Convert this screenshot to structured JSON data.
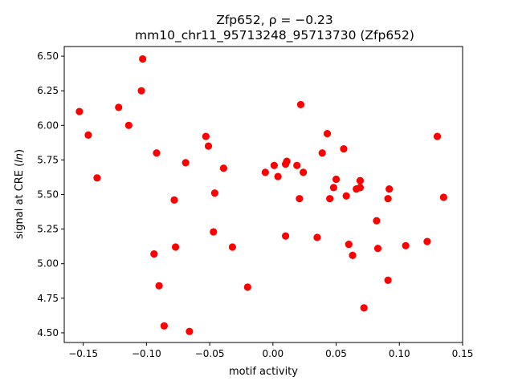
{
  "chart_data": {
    "type": "scatter",
    "title": "Zfp652, ρ = −0.23",
    "subtitle": "mm10_chr11_95713248_95713730 (Zfp652)",
    "xlabel": "motif activity",
    "ylabel": "signal at CRE (ln)",
    "xlim": [
      -0.165,
      0.15
    ],
    "ylim": [
      4.43,
      6.57
    ],
    "xticks": [
      "−0.15",
      "−0.10",
      "−0.05",
      "0.00",
      "0.05",
      "0.10",
      "0.15"
    ],
    "yticks": [
      "4.50",
      "4.75",
      "5.00",
      "5.25",
      "5.50",
      "5.75",
      "6.00",
      "6.25",
      "6.50"
    ],
    "grid": false,
    "marker_color": "#ff0000",
    "points": [
      {
        "x": -0.153,
        "y": 6.1
      },
      {
        "x": -0.146,
        "y": 5.93
      },
      {
        "x": -0.139,
        "y": 5.62
      },
      {
        "x": -0.122,
        "y": 6.13
      },
      {
        "x": -0.114,
        "y": 6.0
      },
      {
        "x": -0.103,
        "y": 6.48
      },
      {
        "x": -0.104,
        "y": 6.25
      },
      {
        "x": -0.092,
        "y": 5.8
      },
      {
        "x": -0.094,
        "y": 5.07
      },
      {
        "x": -0.09,
        "y": 4.84
      },
      {
        "x": -0.086,
        "y": 4.55
      },
      {
        "x": -0.078,
        "y": 5.46
      },
      {
        "x": -0.077,
        "y": 5.12
      },
      {
        "x": -0.069,
        "y": 5.73
      },
      {
        "x": -0.066,
        "y": 4.51
      },
      {
        "x": -0.053,
        "y": 5.92
      },
      {
        "x": -0.051,
        "y": 5.85
      },
      {
        "x": -0.047,
        "y": 5.23
      },
      {
        "x": -0.046,
        "y": 5.51
      },
      {
        "x": -0.039,
        "y": 5.69
      },
      {
        "x": -0.032,
        "y": 5.12
      },
      {
        "x": -0.02,
        "y": 4.83
      },
      {
        "x": -0.006,
        "y": 5.66
      },
      {
        "x": 0.001,
        "y": 5.71
      },
      {
        "x": 0.004,
        "y": 5.63
      },
      {
        "x": 0.01,
        "y": 5.72
      },
      {
        "x": 0.011,
        "y": 5.74
      },
      {
        "x": 0.01,
        "y": 5.2
      },
      {
        "x": 0.019,
        "y": 5.71
      },
      {
        "x": 0.022,
        "y": 6.15
      },
      {
        "x": 0.024,
        "y": 5.66
      },
      {
        "x": 0.021,
        "y": 5.47
      },
      {
        "x": 0.035,
        "y": 5.19
      },
      {
        "x": 0.039,
        "y": 5.8
      },
      {
        "x": 0.043,
        "y": 5.94
      },
      {
        "x": 0.045,
        "y": 5.47
      },
      {
        "x": 0.048,
        "y": 5.55
      },
      {
        "x": 0.05,
        "y": 5.61
      },
      {
        "x": 0.056,
        "y": 5.83
      },
      {
        "x": 0.058,
        "y": 5.49
      },
      {
        "x": 0.06,
        "y": 5.14
      },
      {
        "x": 0.063,
        "y": 5.06
      },
      {
        "x": 0.066,
        "y": 5.54
      },
      {
        "x": 0.069,
        "y": 5.6
      },
      {
        "x": 0.069,
        "y": 5.55
      },
      {
        "x": 0.072,
        "y": 4.68
      },
      {
        "x": 0.082,
        "y": 5.31
      },
      {
        "x": 0.083,
        "y": 5.11
      },
      {
        "x": 0.091,
        "y": 5.47
      },
      {
        "x": 0.092,
        "y": 5.54
      },
      {
        "x": 0.091,
        "y": 4.88
      },
      {
        "x": 0.105,
        "y": 5.13
      },
      {
        "x": 0.122,
        "y": 5.16
      },
      {
        "x": 0.13,
        "y": 5.92
      },
      {
        "x": 0.135,
        "y": 5.48
      }
    ]
  }
}
